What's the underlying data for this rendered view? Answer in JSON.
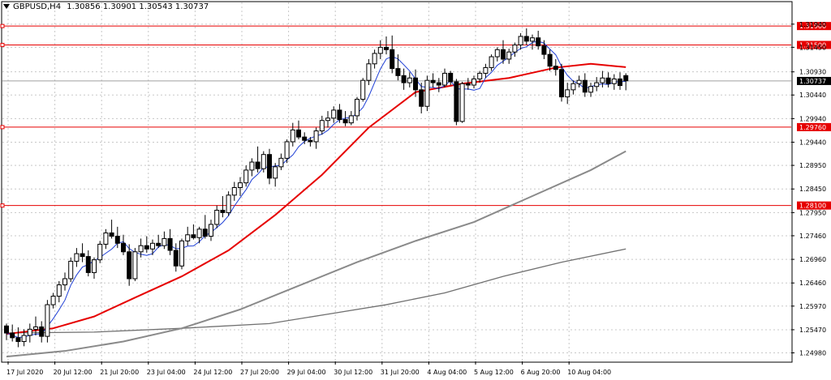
{
  "header": {
    "symbol": "GBPUSD,H4",
    "open": "1.30856",
    "high": "1.30901",
    "low": "1.30543",
    "close": "1.30737"
  },
  "chart_data": {
    "type": "candlestick",
    "grid": true,
    "ylim": [
      1.248,
      1.324
    ],
    "y_ticks": [
      "1.31940",
      "1.31450",
      "1.30930",
      "1.30440",
      "1.29940",
      "1.29440",
      "1.28950",
      "1.28450",
      "1.27950",
      "1.27460",
      "1.26960",
      "1.26460",
      "1.25970",
      "1.25470",
      "1.24980"
    ],
    "x_ticks": [
      "17 Jul 2020",
      "20 Jul 12:00",
      "21 Jul 20:00",
      "23 Jul 04:00",
      "24 Jul 12:00",
      "27 Jul 20:00",
      "29 Jul 04:00",
      "30 Jul 12:00",
      "31 Jul 20:00",
      "4 Aug 04:00",
      "5 Aug 12:00",
      "6 Aug 20:00",
      "10 Aug 04:00"
    ],
    "horizontal_levels": [
      {
        "label": "1.31900",
        "value": 1.319,
        "color": "#e60000"
      },
      {
        "label": "1.31500",
        "value": 1.315,
        "color": "#e60000"
      },
      {
        "label": "1.29760",
        "value": 1.2976,
        "color": "#e60000"
      },
      {
        "label": "1.28100",
        "value": 1.281,
        "color": "#e60000"
      }
    ],
    "current_price": {
      "label": "1.30737",
      "value": 1.30737
    },
    "candles": [
      [
        1.2555,
        1.256,
        1.2525,
        1.254
      ],
      [
        1.254,
        1.2558,
        1.2522,
        1.253
      ],
      [
        1.253,
        1.2552,
        1.251,
        1.2522
      ],
      [
        1.2522,
        1.2548,
        1.2512,
        1.2535
      ],
      [
        1.2535,
        1.256,
        1.252,
        1.2548
      ],
      [
        1.2548,
        1.2575,
        1.2535,
        1.2553
      ],
      [
        1.2553,
        1.2565,
        1.252,
        1.2533
      ],
      [
        1.2533,
        1.261,
        1.252,
        1.26
      ],
      [
        1.26,
        1.2625,
        1.2592,
        1.2618
      ],
      [
        1.2618,
        1.265,
        1.2605,
        1.2642
      ],
      [
        1.2642,
        1.2668,
        1.263,
        1.2655
      ],
      [
        1.2655,
        1.27,
        1.2648,
        1.2692
      ],
      [
        1.2692,
        1.272,
        1.268,
        1.2708
      ],
      [
        1.2708,
        1.273,
        1.269,
        1.2702
      ],
      [
        1.2702,
        1.2715,
        1.266,
        1.2668
      ],
      [
        1.2668,
        1.27,
        1.2655,
        1.2695
      ],
      [
        1.2695,
        1.2735,
        1.2688,
        1.2728
      ],
      [
        1.2728,
        1.276,
        1.2718,
        1.2752
      ],
      [
        1.2752,
        1.278,
        1.274,
        1.2745
      ],
      [
        1.2745,
        1.2765,
        1.272,
        1.273
      ],
      [
        1.273,
        1.2748,
        1.2705,
        1.2712
      ],
      [
        1.2712,
        1.2728,
        1.264,
        1.2655
      ],
      [
        1.2655,
        1.272,
        1.265,
        1.2712
      ],
      [
        1.2712,
        1.274,
        1.27,
        1.2725
      ],
      [
        1.2725,
        1.2745,
        1.271,
        1.2718
      ],
      [
        1.2718,
        1.2738,
        1.2705,
        1.273
      ],
      [
        1.273,
        1.2748,
        1.272,
        1.2725
      ],
      [
        1.2725,
        1.2755,
        1.2718,
        1.274
      ],
      [
        1.274,
        1.276,
        1.2705,
        1.2715
      ],
      [
        1.2715,
        1.273,
        1.267,
        1.2682
      ],
      [
        1.2682,
        1.274,
        1.2675,
        1.2735
      ],
      [
        1.2735,
        1.2765,
        1.2725,
        1.2748
      ],
      [
        1.2748,
        1.277,
        1.2738,
        1.2742
      ],
      [
        1.2742,
        1.2765,
        1.273,
        1.276
      ],
      [
        1.276,
        1.279,
        1.274,
        1.2745
      ],
      [
        1.2745,
        1.278,
        1.2735,
        1.277
      ],
      [
        1.277,
        1.281,
        1.2762,
        1.28
      ],
      [
        1.28,
        1.283,
        1.2785,
        1.2795
      ],
      [
        1.2795,
        1.284,
        1.2788,
        1.2832
      ],
      [
        1.2832,
        1.286,
        1.282,
        1.2848
      ],
      [
        1.2848,
        1.287,
        1.283,
        1.2858
      ],
      [
        1.2858,
        1.2895,
        1.285,
        1.2885
      ],
      [
        1.2885,
        1.291,
        1.2872,
        1.2902
      ],
      [
        1.2902,
        1.2935,
        1.288,
        1.2888
      ],
      [
        1.2888,
        1.2925,
        1.288,
        1.2918
      ],
      [
        1.2918,
        1.293,
        1.2855,
        1.2868
      ],
      [
        1.2868,
        1.29,
        1.285,
        1.2892
      ],
      [
        1.2892,
        1.292,
        1.2885,
        1.291
      ],
      [
        1.291,
        1.295,
        1.29,
        1.2945
      ],
      [
        1.2945,
        1.2985,
        1.2935,
        1.297
      ],
      [
        1.297,
        1.299,
        1.295,
        1.2955
      ],
      [
        1.2955,
        1.2965,
        1.294,
        1.2948
      ],
      [
        1.2948,
        1.2955,
        1.2935,
        1.2945
      ],
      [
        1.2945,
        1.2975,
        1.293,
        1.2968
      ],
      [
        1.2968,
        1.3,
        1.296,
        1.299
      ],
      [
        1.299,
        1.301,
        1.2975,
        1.2995
      ],
      [
        1.2995,
        1.302,
        1.2985,
        1.3012
      ],
      [
        1.3012,
        1.3025,
        1.2985,
        1.2992
      ],
      [
        1.2992,
        1.301,
        1.2978,
        1.2985
      ],
      [
        1.2985,
        1.301,
        1.298,
        1.3
      ],
      [
        1.3,
        1.304,
        1.299,
        1.3035
      ],
      [
        1.3035,
        1.308,
        1.303,
        1.3075
      ],
      [
        1.3075,
        1.312,
        1.3065,
        1.311
      ],
      [
        1.311,
        1.314,
        1.31,
        1.3132
      ],
      [
        1.3132,
        1.316,
        1.312,
        1.3145
      ],
      [
        1.3145,
        1.3168,
        1.313,
        1.314
      ],
      [
        1.314,
        1.317,
        1.309,
        1.31
      ],
      [
        1.31,
        1.313,
        1.3075,
        1.3085
      ],
      [
        1.3085,
        1.31,
        1.3055,
        1.307
      ],
      [
        1.307,
        1.3092,
        1.306,
        1.308
      ],
      [
        1.308,
        1.3098,
        1.304,
        1.3055
      ],
      [
        1.3055,
        1.307,
        1.3005,
        1.302
      ],
      [
        1.302,
        1.3085,
        1.301,
        1.3075
      ],
      [
        1.3075,
        1.309,
        1.306,
        1.307
      ],
      [
        1.307,
        1.308,
        1.305,
        1.3065
      ],
      [
        1.3065,
        1.31,
        1.306,
        1.309
      ],
      [
        1.309,
        1.3095,
        1.3065,
        1.3072
      ],
      [
        1.3072,
        1.3078,
        1.298,
        1.2988
      ],
      [
        1.2988,
        1.3072,
        1.2985,
        1.3068
      ],
      [
        1.3068,
        1.308,
        1.3055,
        1.3065
      ],
      [
        1.3065,
        1.3085,
        1.3058,
        1.3078
      ],
      [
        1.3078,
        1.3095,
        1.307,
        1.309
      ],
      [
        1.309,
        1.311,
        1.308,
        1.3102
      ],
      [
        1.3102,
        1.313,
        1.3095,
        1.3125
      ],
      [
        1.3125,
        1.3145,
        1.3115,
        1.314
      ],
      [
        1.314,
        1.316,
        1.311,
        1.312
      ],
      [
        1.312,
        1.3142,
        1.311,
        1.3135
      ],
      [
        1.3135,
        1.3155,
        1.3125,
        1.315
      ],
      [
        1.315,
        1.3175,
        1.314,
        1.3168
      ],
      [
        1.3168,
        1.3185,
        1.315,
        1.3158
      ],
      [
        1.3158,
        1.3172,
        1.314,
        1.3165
      ],
      [
        1.3165,
        1.318,
        1.314,
        1.3148
      ],
      [
        1.3148,
        1.316,
        1.312,
        1.313
      ],
      [
        1.313,
        1.314,
        1.3095,
        1.3105
      ],
      [
        1.3105,
        1.312,
        1.3085,
        1.3098
      ],
      [
        1.3098,
        1.311,
        1.303,
        1.304
      ],
      [
        1.304,
        1.307,
        1.3025,
        1.3055
      ],
      [
        1.3055,
        1.3075,
        1.3045,
        1.3068
      ],
      [
        1.3068,
        1.3085,
        1.306,
        1.3075
      ],
      [
        1.3075,
        1.309,
        1.304,
        1.305
      ],
      [
        1.305,
        1.307,
        1.304,
        1.3062
      ],
      [
        1.3062,
        1.3082,
        1.3052,
        1.307
      ],
      [
        1.307,
        1.3095,
        1.306,
        1.308
      ],
      [
        1.308,
        1.3092,
        1.306,
        1.3068
      ],
      [
        1.3068,
        1.3088,
        1.3055,
        1.3078
      ],
      [
        1.3078,
        1.3092,
        1.3055,
        1.3064
      ],
      [
        1.3085,
        1.309,
        1.3054,
        1.3074
      ]
    ],
    "ma_red": [
      [
        0,
        1.2538
      ],
      [
        8,
        1.255
      ],
      [
        15,
        1.2575
      ],
      [
        22,
        1.2615
      ],
      [
        30,
        1.266
      ],
      [
        38,
        1.2715
      ],
      [
        46,
        1.279
      ],
      [
        54,
        1.2875
      ],
      [
        62,
        1.2975
      ],
      [
        70,
        1.305
      ],
      [
        78,
        1.3068
      ],
      [
        86,
        1.308
      ],
      [
        94,
        1.3102
      ],
      [
        100,
        1.311
      ],
      [
        106,
        1.3103
      ]
    ],
    "ma_grey_mid": [
      [
        0,
        1.249
      ],
      [
        10,
        1.2502
      ],
      [
        20,
        1.2522
      ],
      [
        30,
        1.255
      ],
      [
        40,
        1.259
      ],
      [
        50,
        1.264
      ],
      [
        60,
        1.269
      ],
      [
        70,
        1.2735
      ],
      [
        80,
        1.2775
      ],
      [
        90,
        1.283
      ],
      [
        100,
        1.2885
      ],
      [
        106,
        1.2925
      ]
    ],
    "ma_grey_low": [
      [
        0,
        1.254
      ],
      [
        15,
        1.2542
      ],
      [
        30,
        1.255
      ],
      [
        45,
        1.256
      ],
      [
        55,
        1.258
      ],
      [
        65,
        1.26
      ],
      [
        75,
        1.2625
      ],
      [
        85,
        1.266
      ],
      [
        95,
        1.269
      ],
      [
        106,
        1.2718
      ]
    ]
  }
}
